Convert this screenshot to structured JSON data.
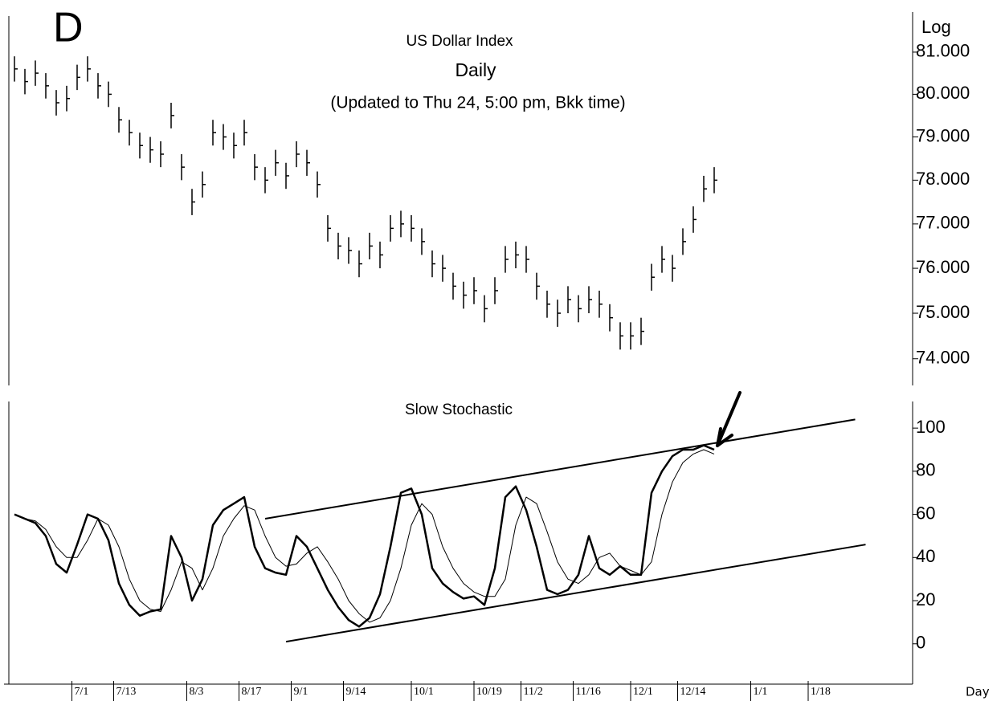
{
  "chart_data": [
    {
      "type": "ohlc",
      "title": "US Dollar Index",
      "subtitle": "Daily",
      "note": "(Updated to Thu 24, 5:00 pm, Bkk time)",
      "corner_label": "D",
      "axis_label": "Log",
      "log_scale": true,
      "color": "#000000",
      "x": [
        0,
        2,
        4,
        6,
        8,
        10,
        12,
        14,
        16,
        18,
        20,
        22,
        24,
        26,
        28,
        30,
        32,
        34,
        36,
        38,
        40,
        42,
        44,
        46,
        48,
        50,
        52,
        54,
        56,
        58,
        60,
        62,
        64,
        66,
        68,
        70,
        72,
        74,
        76,
        78,
        80,
        82,
        84,
        86,
        88,
        90,
        92,
        94,
        96,
        98,
        100,
        102,
        104,
        106,
        108,
        110,
        112,
        114,
        116,
        118,
        120,
        122,
        124,
        126,
        128,
        130,
        132,
        134
      ],
      "high": [
        80.9,
        80.6,
        80.8,
        80.5,
        80.1,
        80.2,
        80.7,
        80.9,
        80.5,
        80.3,
        79.7,
        79.4,
        79.1,
        79.0,
        78.9,
        79.8,
        78.6,
        77.8,
        78.2,
        79.4,
        79.3,
        79.1,
        79.4,
        78.6,
        78.3,
        78.7,
        78.4,
        78.9,
        78.7,
        78.2,
        77.2,
        76.8,
        76.7,
        76.4,
        76.8,
        76.6,
        77.2,
        77.3,
        77.2,
        76.9,
        76.4,
        76.3,
        75.9,
        75.7,
        75.8,
        75.4,
        75.8,
        76.5,
        76.6,
        76.5,
        75.9,
        75.5,
        75.3,
        75.6,
        75.4,
        75.6,
        75.5,
        75.2,
        74.8,
        74.8,
        74.9,
        76.1,
        76.5,
        76.3,
        76.9,
        77.4,
        78.1,
        78.3
      ],
      "low": [
        80.3,
        80.0,
        80.2,
        79.9,
        79.5,
        79.6,
        80.1,
        80.3,
        79.9,
        79.7,
        79.1,
        78.8,
        78.5,
        78.4,
        78.3,
        79.2,
        78.0,
        77.2,
        77.6,
        78.8,
        78.7,
        78.5,
        78.8,
        78.0,
        77.7,
        78.1,
        77.8,
        78.3,
        78.1,
        77.6,
        76.6,
        76.2,
        76.1,
        75.8,
        76.2,
        76.0,
        76.6,
        76.7,
        76.6,
        76.3,
        75.8,
        75.7,
        75.3,
        75.1,
        75.2,
        74.8,
        75.2,
        75.9,
        76.0,
        75.9,
        75.3,
        74.9,
        74.7,
        75.0,
        74.8,
        75.0,
        74.9,
        74.6,
        74.2,
        74.2,
        74.3,
        75.5,
        75.9,
        75.7,
        76.3,
        76.8,
        77.5,
        77.7
      ],
      "close": [
        80.6,
        80.3,
        80.5,
        80.2,
        79.8,
        79.9,
        80.4,
        80.6,
        80.2,
        80.0,
        79.4,
        79.1,
        78.8,
        78.7,
        78.6,
        79.5,
        78.3,
        77.5,
        77.9,
        79.1,
        79.0,
        78.8,
        79.1,
        78.3,
        78.0,
        78.4,
        78.1,
        78.6,
        78.4,
        77.9,
        76.9,
        76.5,
        76.4,
        76.1,
        76.5,
        76.3,
        76.9,
        77.0,
        76.9,
        76.6,
        76.1,
        76.0,
        75.6,
        75.4,
        75.5,
        75.1,
        75.5,
        76.2,
        76.3,
        76.2,
        75.6,
        75.2,
        75.0,
        75.3,
        75.1,
        75.3,
        75.2,
        74.9,
        74.5,
        74.5,
        74.6,
        75.8,
        76.2,
        76.0,
        76.6,
        77.1,
        77.8,
        78.0
      ],
      "xlim": [
        -2,
        172
      ],
      "ylim": [
        73.42,
        82.06
      ],
      "yticks": [
        {
          "value": 74,
          "label": "74.000"
        },
        {
          "value": 75,
          "label": "75.000"
        },
        {
          "value": 76,
          "label": "76.000"
        },
        {
          "value": 77,
          "label": "77.000"
        },
        {
          "value": 78,
          "label": "78.000"
        },
        {
          "value": 79,
          "label": "79.000"
        },
        {
          "value": 80,
          "label": "80.000"
        },
        {
          "value": 81,
          "label": "81.000"
        }
      ]
    },
    {
      "type": "line",
      "title": "Slow Stochastic",
      "x_axis_label": "Day",
      "x": [
        0,
        2,
        4,
        6,
        8,
        10,
        12,
        14,
        16,
        18,
        20,
        22,
        24,
        26,
        28,
        30,
        32,
        34,
        36,
        38,
        40,
        42,
        44,
        46,
        48,
        50,
        52,
        54,
        56,
        58,
        60,
        62,
        64,
        66,
        68,
        70,
        72,
        74,
        76,
        78,
        80,
        82,
        84,
        86,
        88,
        90,
        92,
        94,
        96,
        98,
        100,
        102,
        104,
        106,
        108,
        110,
        112,
        114,
        116,
        118,
        120,
        122,
        124,
        126,
        128,
        130,
        132,
        134
      ],
      "series": [
        {
          "color": "#000000",
          "values": [
            60,
            58,
            56,
            50,
            37,
            33,
            46,
            60,
            58,
            48,
            28,
            18,
            13,
            15,
            16,
            50,
            40,
            20,
            30,
            55,
            62,
            65,
            68,
            45,
            35,
            33,
            32,
            50,
            45,
            35,
            25,
            17,
            11,
            8,
            12,
            23,
            45,
            70,
            72,
            60,
            35,
            28,
            24,
            21,
            22,
            18,
            35,
            68,
            73,
            62,
            45,
            25,
            23,
            25,
            32,
            50,
            35,
            32,
            36,
            32,
            32,
            70,
            80,
            87,
            90,
            90,
            92,
            90
          ]
        },
        {
          "color": "#000000",
          "values": [
            60,
            58,
            57,
            53,
            45,
            40,
            40,
            48,
            58,
            55,
            45,
            30,
            20,
            16,
            15,
            25,
            38,
            35,
            25,
            35,
            50,
            58,
            64,
            62,
            50,
            40,
            36,
            37,
            42,
            45,
            38,
            30,
            20,
            14,
            10,
            12,
            20,
            35,
            55,
            65,
            60,
            45,
            35,
            28,
            24,
            22,
            22,
            30,
            55,
            68,
            65,
            52,
            38,
            30,
            28,
            32,
            40,
            42,
            36,
            34,
            32,
            38,
            60,
            75,
            84,
            88,
            90,
            88
          ]
        }
      ],
      "trendlines": [
        {
          "x": [
            48,
            161
          ],
          "values": [
            58,
            104
          ]
        },
        {
          "x": [
            52,
            163
          ],
          "values": [
            1,
            46
          ]
        }
      ],
      "xlim": [
        -2,
        172
      ],
      "ylim": [
        -18.7,
        114.2
      ],
      "yticks": [
        0,
        20,
        40,
        60,
        80,
        100
      ],
      "xticks": [
        {
          "value": 11,
          "label": "7/1"
        },
        {
          "value": 19,
          "label": "7/13"
        },
        {
          "value": 33,
          "label": "8/3"
        },
        {
          "value": 43,
          "label": "8/17"
        },
        {
          "value": 53,
          "label": "9/1"
        },
        {
          "value": 63,
          "label": "9/14"
        },
        {
          "value": 76,
          "label": "10/1"
        },
        {
          "value": 88,
          "label": "10/19"
        },
        {
          "value": 97,
          "label": "11/2"
        },
        {
          "value": 107,
          "label": "11/16"
        },
        {
          "value": 118,
          "label": "12/1"
        },
        {
          "value": 127,
          "label": "12/14"
        },
        {
          "value": 141,
          "label": "1/1"
        },
        {
          "value": 152,
          "label": "1/18"
        }
      ]
    }
  ]
}
